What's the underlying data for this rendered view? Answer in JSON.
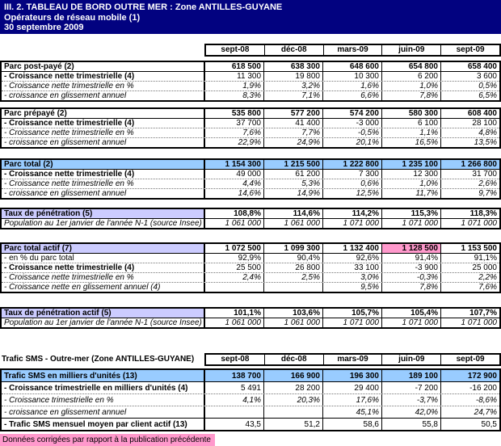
{
  "title": {
    "lines": [
      "III. 2. TABLEAU DE BORD OUTRE MER : Zone ANTILLES-GUYANE",
      "Opérateurs de réseau mobile (1)",
      "30 septembre 2009"
    ]
  },
  "columns": [
    "sept-08",
    "déc-08",
    "mars-09",
    "juin-09",
    "sept-09"
  ],
  "sms_section_label": "Trafic SMS - Outre-mer (Zone ANTILLES-GUYANE)",
  "footnote": "Données corrigées par rapport à la publication précédente",
  "colors": {
    "title_bg": "#020280",
    "title_text": "#FFFFFF",
    "row_blue": "#99CCFF",
    "row_lavender": "#CCCCFF",
    "highlight_pink": "#FF99CC"
  },
  "blocks": [
    {
      "name": "parc-post-paye",
      "rows": [
        {
          "label": "Parc post-payé (2)",
          "label_style": "bold",
          "value_style": "bold",
          "divider": "none",
          "values": [
            "618 500",
            "638 300",
            "648 600",
            "654 800",
            "658 400"
          ]
        },
        {
          "label": "- Croissance nette trimestrielle (4)",
          "label_style": "bold",
          "value_style": "normal",
          "divider": "solid",
          "values": [
            "11 300",
            "19 800",
            "10 300",
            "6 200",
            "3 600"
          ]
        },
        {
          "label": "- Croissance nette trimestrielle en %",
          "label_style": "italic",
          "value_style": "italic",
          "divider": "dotted",
          "values": [
            "1,9%",
            "3,2%",
            "1,6%",
            "1,0%",
            "0,5%"
          ]
        },
        {
          "label": "- croissance en glissement annuel",
          "label_style": "italic",
          "value_style": "italic",
          "divider": "dotted",
          "values": [
            "8,3%",
            "7,1%",
            "6,6%",
            "7,8%",
            "6,5%"
          ]
        }
      ]
    },
    {
      "name": "parc-prepaye",
      "rows": [
        {
          "label": "Parc prépayé (2)",
          "label_style": "bold",
          "value_style": "bold",
          "divider": "none",
          "values": [
            "535 800",
            "577 200",
            "574 200",
            "580 300",
            "608 400"
          ]
        },
        {
          "label": "- Croissance nette trimestrielle (4)",
          "label_style": "bold",
          "value_style": "normal",
          "divider": "solid",
          "values": [
            "37 700",
            "41 400",
            "-3 000",
            "6 100",
            "28 100"
          ]
        },
        {
          "label": "- Croissance nette trimestrielle en %",
          "label_style": "italic",
          "value_style": "italic",
          "divider": "dotted",
          "values": [
            "7,6%",
            "7,7%",
            "-0,5%",
            "1,1%",
            "4,8%"
          ]
        },
        {
          "label": "- croissance en glissement annuel",
          "label_style": "italic",
          "value_style": "italic",
          "divider": "dotted",
          "values": [
            "22,9%",
            "24,9%",
            "20,1%",
            "16,5%",
            "13,5%"
          ]
        }
      ]
    },
    {
      "name": "parc-total",
      "rows": [
        {
          "label": "Parc total (2)",
          "label_style": "bold",
          "value_style": "bold",
          "row_bg": "blue",
          "divider": "none",
          "values": [
            "1 154 300",
            "1 215 500",
            "1 222 800",
            "1 235 100",
            "1 266 800"
          ]
        },
        {
          "label": "- Croissance nette trimestrielle (4)",
          "label_style": "bold",
          "value_style": "normal",
          "divider": "solid",
          "values": [
            "49 000",
            "61 200",
            "7 300",
            "12 300",
            "31 700"
          ]
        },
        {
          "label": "- Croissance nette trimestrielle en %",
          "label_style": "italic",
          "value_style": "italic",
          "divider": "dotted",
          "values": [
            "4,4%",
            "5,3%",
            "0,6%",
            "1,0%",
            "2,6%"
          ]
        },
        {
          "label": "- croissance en glissement annuel",
          "label_style": "italic",
          "value_style": "italic",
          "divider": "dotted",
          "values": [
            "14,6%",
            "14,9%",
            "12,5%",
            "11,7%",
            "9,7%"
          ]
        }
      ]
    },
    {
      "name": "taux-de-penetration",
      "rows": [
        {
          "label": "Taux de pénétration (5)",
          "label_style": "bold",
          "value_style": "bold",
          "label_bg": "lavender",
          "divider": "none",
          "values": [
            "108,8%",
            "114,6%",
            "114,2%",
            "115,3%",
            "118,3%"
          ]
        },
        {
          "label": "Population au 1er janvier de l'année N-1 (source Insee)",
          "label_style": "italic",
          "value_style": "italic",
          "divider": "solid",
          "values": [
            "1 061 000",
            "1 061 000",
            "1 071 000",
            "1 071 000",
            "1 071 000"
          ]
        }
      ]
    },
    {
      "name": "parc-total-actif",
      "rows": [
        {
          "label": "Parc total actif (7)",
          "label_style": "bold",
          "value_style": "bold",
          "label_bg": "lavender",
          "highlight_col": 3,
          "divider": "none",
          "values": [
            "1 072 500",
            "1 099 300",
            "1 132 400",
            "1 128 500",
            "1 153 500"
          ]
        },
        {
          "label": "- en % du parc total",
          "label_style": "normal",
          "value_style": "normal",
          "divider": "solid",
          "values": [
            "92,9%",
            "90,4%",
            "92,6%",
            "91,4%",
            "91,1%"
          ]
        },
        {
          "label": "- Croissance nette trimestrielle (4)",
          "label_style": "bold",
          "value_style": "normal",
          "divider": "dotted",
          "values": [
            "25 500",
            "26 800",
            "33 100",
            "-3 900",
            "25 000"
          ]
        },
        {
          "label": "- Croissance nette trimestrielle en %",
          "label_style": "italic",
          "value_style": "italic",
          "divider": "dotted",
          "values": [
            "2,4%",
            "2,5%",
            "3,0%",
            "-0,3%",
            "2,2%"
          ]
        },
        {
          "label": "- Croissance nette en glissement annuel (4)",
          "label_style": "italic",
          "value_style": "italic",
          "divider": "dotted",
          "values": [
            "",
            "",
            "9,5%",
            "7,8%",
            "7,6%"
          ]
        }
      ]
    },
    {
      "name": "taux-de-penetration-actif",
      "rows": [
        {
          "label": "Taux de pénétration actif (5)",
          "label_style": "bold",
          "value_style": "bold",
          "label_bg": "lavender",
          "divider": "none",
          "values": [
            "101,1%",
            "103,6%",
            "105,7%",
            "105,4%",
            "107,7%"
          ]
        },
        {
          "label": "Population au 1er janvier de l'année N-1 (source Insee)",
          "label_style": "italic",
          "value_style": "italic",
          "divider": "solid",
          "values": [
            "1 061 000",
            "1 061 000",
            "1 071 000",
            "1 071 000",
            "1 071 000"
          ]
        }
      ]
    },
    {
      "name": "trafic-sms",
      "rows": [
        {
          "label": "Trafic SMS en milliers d'unités (13)",
          "label_style": "bold",
          "value_style": "bold",
          "row_bg": "blue",
          "divider": "none",
          "values": [
            "138 700",
            "166 900",
            "196 300",
            "189 100",
            "172 900"
          ]
        },
        {
          "label": "- Croissance trimestrielle en milliers d'unités (4)",
          "label_style": "bold",
          "value_style": "normal",
          "divider": "solid",
          "values": [
            "5 491",
            "28 200",
            "29 400",
            "-7 200",
            "-16 200"
          ]
        },
        {
          "label": "- Croissance trimestrielle en %",
          "label_style": "italic",
          "value_style": "italic",
          "divider": "dotted",
          "values": [
            "4,1%",
            "20,3%",
            "17,6%",
            "-3,7%",
            "-8,6%"
          ]
        },
        {
          "label": "- croissance en glissement annuel",
          "label_style": "italic",
          "value_style": "italic",
          "divider": "dotted",
          "values": [
            "",
            "",
            "45,1%",
            "42,0%",
            "24,7%"
          ]
        },
        {
          "label": "- Trafic SMS mensuel moyen par client actif (13)",
          "label_style": "bold",
          "value_style": "normal",
          "divider": "solid",
          "values": [
            "43,5",
            "51,2",
            "58,6",
            "55,8",
            "50,5"
          ]
        }
      ]
    }
  ]
}
